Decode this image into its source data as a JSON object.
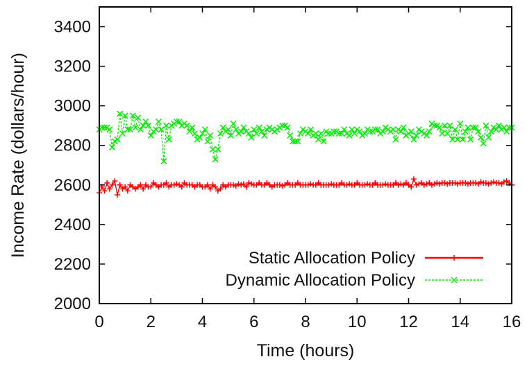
{
  "chart_data": {
    "type": "line",
    "title": "",
    "xlabel": "Time (hours)",
    "ylabel": "Income Rate (dollars/hour)",
    "xlim": [
      0,
      16
    ],
    "ylim": [
      2000,
      3500
    ],
    "xticks": [
      0,
      2,
      4,
      6,
      8,
      10,
      12,
      14,
      16
    ],
    "yticks": [
      2000,
      2200,
      2400,
      2600,
      2800,
      3000,
      3200,
      3400
    ],
    "grid": false,
    "legend_position": "bottom-right",
    "series": [
      {
        "name": "Static Allocation Policy",
        "color": "#ff0000",
        "marker": "plus",
        "x": [
          0.0,
          0.1,
          0.2,
          0.3,
          0.4,
          0.5,
          0.6,
          0.7,
          0.8,
          0.9,
          1.0,
          1.1,
          1.2,
          1.3,
          1.4,
          1.5,
          1.6,
          1.7,
          1.8,
          1.9,
          2.0,
          2.1,
          2.2,
          2.3,
          2.4,
          2.5,
          2.6,
          2.7,
          2.8,
          2.9,
          3.0,
          3.1,
          3.2,
          3.3,
          3.4,
          3.5,
          3.6,
          3.7,
          3.8,
          3.9,
          4.0,
          4.1,
          4.2,
          4.3,
          4.4,
          4.5,
          4.6,
          4.7,
          4.8,
          4.9,
          5.0,
          5.1,
          5.2,
          5.3,
          5.4,
          5.5,
          5.6,
          5.7,
          5.8,
          5.9,
          6.0,
          6.1,
          6.2,
          6.3,
          6.4,
          6.5,
          6.6,
          6.7,
          6.8,
          6.9,
          7.0,
          7.1,
          7.2,
          7.3,
          7.4,
          7.5,
          7.6,
          7.7,
          7.8,
          7.9,
          8.0,
          8.1,
          8.2,
          8.3,
          8.4,
          8.5,
          8.6,
          8.7,
          8.8,
          8.9,
          9.0,
          9.1,
          9.2,
          9.3,
          9.4,
          9.5,
          9.6,
          9.7,
          9.8,
          9.9,
          10.0,
          10.1,
          10.2,
          10.3,
          10.4,
          10.5,
          10.6,
          10.7,
          10.8,
          10.9,
          11.0,
          11.1,
          11.2,
          11.3,
          11.4,
          11.5,
          11.6,
          11.7,
          11.8,
          11.9,
          12.0,
          12.1,
          12.2,
          12.3,
          12.4,
          12.5,
          12.6,
          12.7,
          12.8,
          12.9,
          13.0,
          13.1,
          13.2,
          13.3,
          13.4,
          13.5,
          13.6,
          13.7,
          13.8,
          13.9,
          14.0,
          14.1,
          14.2,
          14.3,
          14.4,
          14.5,
          14.6,
          14.7,
          14.8,
          14.9,
          15.0,
          15.1,
          15.2,
          15.3,
          15.4,
          15.5,
          15.6,
          15.7,
          15.8,
          15.9,
          16.0
        ],
        "y": [
          2560,
          2590,
          2570,
          2610,
          2580,
          2600,
          2620,
          2550,
          2600,
          2580,
          2590,
          2570,
          2600,
          2590,
          2580,
          2590,
          2600,
          2580,
          2600,
          2590,
          2590,
          2610,
          2600,
          2590,
          2600,
          2600,
          2610,
          2590,
          2600,
          2600,
          2605,
          2600,
          2590,
          2610,
          2600,
          2600,
          2600,
          2590,
          2600,
          2600,
          2590,
          2590,
          2600,
          2580,
          2600,
          2590,
          2570,
          2580,
          2600,
          2590,
          2600,
          2600,
          2600,
          2595,
          2605,
          2600,
          2605,
          2590,
          2610,
          2605,
          2600,
          2600,
          2610,
          2600,
          2600,
          2610,
          2600,
          2590,
          2600,
          2600,
          2600,
          2595,
          2600,
          2610,
          2600,
          2600,
          2600,
          2610,
          2600,
          2600,
          2600,
          2600,
          2605,
          2600,
          2600,
          2610,
          2600,
          2600,
          2600,
          2600,
          2605,
          2600,
          2600,
          2600,
          2610,
          2600,
          2600,
          2605,
          2600,
          2600,
          2610,
          2600,
          2600,
          2600,
          2605,
          2600,
          2600,
          2610,
          2600,
          2600,
          2600,
          2605,
          2600,
          2600,
          2600,
          2610,
          2600,
          2605,
          2600,
          2610,
          2600,
          2590,
          2630,
          2600,
          2605,
          2610,
          2600,
          2605,
          2610,
          2600,
          2605,
          2610,
          2605,
          2610,
          2610,
          2605,
          2610,
          2610,
          2610,
          2605,
          2610,
          2610,
          2610,
          2605,
          2610,
          2610,
          2610,
          2605,
          2615,
          2610,
          2610,
          2605,
          2610,
          2615,
          2610,
          2610,
          2605,
          2615,
          2620,
          2610,
          2600
        ]
      },
      {
        "name": "Dynamic Allocation Policy",
        "color": "#00ee00",
        "marker": "x",
        "x": [
          0.0,
          0.1,
          0.2,
          0.3,
          0.4,
          0.5,
          0.6,
          0.7,
          0.8,
          0.9,
          1.0,
          1.1,
          1.2,
          1.3,
          1.4,
          1.5,
          1.6,
          1.7,
          1.8,
          1.9,
          2.0,
          2.1,
          2.2,
          2.3,
          2.4,
          2.5,
          2.6,
          2.7,
          2.8,
          2.9,
          3.0,
          3.1,
          3.2,
          3.3,
          3.4,
          3.5,
          3.6,
          3.7,
          3.8,
          3.9,
          4.0,
          4.1,
          4.2,
          4.3,
          4.4,
          4.5,
          4.6,
          4.7,
          4.8,
          4.9,
          5.0,
          5.1,
          5.2,
          5.3,
          5.4,
          5.5,
          5.6,
          5.7,
          5.8,
          5.9,
          6.0,
          6.1,
          6.2,
          6.3,
          6.4,
          6.5,
          6.6,
          6.7,
          6.8,
          6.9,
          7.0,
          7.1,
          7.2,
          7.3,
          7.4,
          7.5,
          7.6,
          7.7,
          7.8,
          7.9,
          8.0,
          8.1,
          8.2,
          8.3,
          8.4,
          8.5,
          8.6,
          8.7,
          8.8,
          8.9,
          9.0,
          9.1,
          9.2,
          9.3,
          9.4,
          9.5,
          9.6,
          9.7,
          9.8,
          9.9,
          10.0,
          10.1,
          10.2,
          10.3,
          10.4,
          10.5,
          10.6,
          10.7,
          10.8,
          10.9,
          11.0,
          11.1,
          11.2,
          11.3,
          11.4,
          11.5,
          11.6,
          11.7,
          11.8,
          11.9,
          12.0,
          12.1,
          12.2,
          12.3,
          12.4,
          12.5,
          12.6,
          12.7,
          12.8,
          12.9,
          13.0,
          13.1,
          13.2,
          13.3,
          13.4,
          13.5,
          13.6,
          13.7,
          13.8,
          13.9,
          14.0,
          14.1,
          14.2,
          14.3,
          14.4,
          14.5,
          14.6,
          14.7,
          14.8,
          14.9,
          15.0,
          15.1,
          15.2,
          15.3,
          15.4,
          15.5,
          15.6,
          15.7,
          15.8,
          15.9,
          16.0
        ],
        "y": [
          2880,
          2890,
          2890,
          2890,
          2880,
          2790,
          2820,
          2830,
          2960,
          2860,
          2950,
          2880,
          2880,
          2950,
          2890,
          2940,
          2880,
          2900,
          2920,
          2900,
          2850,
          2870,
          2880,
          2920,
          2880,
          2720,
          2900,
          2830,
          2900,
          2910,
          2920,
          2920,
          2900,
          2910,
          2900,
          2870,
          2890,
          2860,
          2830,
          2840,
          2860,
          2880,
          2820,
          2850,
          2780,
          2730,
          2780,
          2860,
          2890,
          2870,
          2880,
          2850,
          2910,
          2880,
          2860,
          2870,
          2890,
          2870,
          2860,
          2840,
          2880,
          2860,
          2890,
          2870,
          2850,
          2880,
          2890,
          2880,
          2870,
          2880,
          2890,
          2900,
          2900,
          2890,
          2850,
          2820,
          2820,
          2820,
          2860,
          2880,
          2870,
          2860,
          2880,
          2850,
          2860,
          2830,
          2860,
          2820,
          2870,
          2860,
          2860,
          2870,
          2870,
          2860,
          2860,
          2880,
          2860,
          2850,
          2880,
          2860,
          2880,
          2870,
          2850,
          2860,
          2880,
          2870,
          2870,
          2880,
          2880,
          2860,
          2870,
          2890,
          2880,
          2870,
          2880,
          2830,
          2880,
          2870,
          2890,
          2850,
          2860,
          2870,
          2830,
          2850,
          2880,
          2870,
          2860,
          2850,
          2870,
          2910,
          2900,
          2900,
          2890,
          2860,
          2900,
          2860,
          2900,
          2830,
          2880,
          2830,
          2910,
          2830,
          2870,
          2890,
          2830,
          2890,
          2890,
          2870,
          2840,
          2810,
          2900,
          2840,
          2870,
          2890,
          2880,
          2900,
          2880,
          2890,
          2870,
          2890,
          2890
        ]
      }
    ]
  }
}
